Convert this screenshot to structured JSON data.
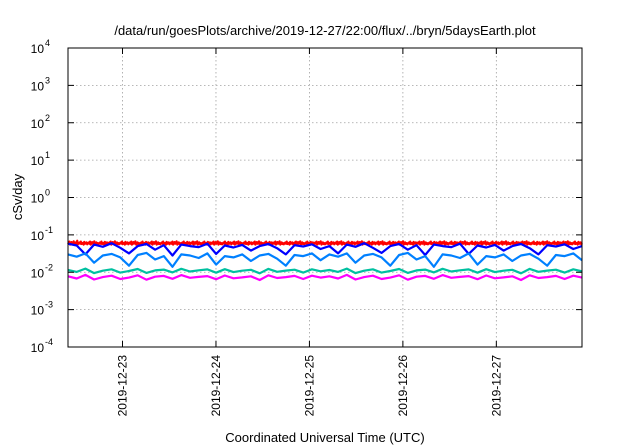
{
  "chart_data": {
    "type": "line",
    "title": "/data/run/goesPlots/archive/2019-12-27/22:00/flux/../bryn/5daysEarth.plot",
    "xlabel": "Coordinated Universal Time (UTC)",
    "ylabel": "cSv/day",
    "yscale": "log",
    "ylim": [
      0.0001,
      10000
    ],
    "ytick_base": "10",
    "ytick_exponents": [
      "-4",
      "-3",
      "-2",
      "-1",
      "0",
      "1",
      "2",
      "3",
      "4"
    ],
    "xlim": [
      "2019-12-22T10:00",
      "2019-12-27T22:00"
    ],
    "xticks": [
      "2019-12-23",
      "2019-12-24",
      "2019-12-25",
      "2019-12-26",
      "2019-12-27"
    ],
    "grid": true,
    "series": [
      {
        "color": "#ff0000",
        "y": [
          0.062,
          0.058,
          0.066,
          0.055,
          0.06,
          0.064,
          0.058,
          0.061,
          0.067,
          0.055,
          0.059,
          0.063,
          0.057,
          0.07,
          0.056,
          0.06,
          0.062,
          0.058,
          0.066,
          0.057,
          0.06,
          0.061,
          0.055,
          0.065,
          0.058,
          0.059,
          0.063,
          0.056,
          0.06,
          0.062,
          0.058,
          0.066,
          0.055,
          0.06,
          0.064,
          0.058,
          0.061,
          0.067,
          0.055,
          0.059,
          0.063,
          0.057,
          0.06,
          0.056,
          0.06,
          0.062,
          0.058,
          0.066,
          0.057,
          0.06,
          0.061,
          0.055,
          0.065,
          0.058,
          0.059,
          0.063,
          0.056,
          0.06,
          0.062,
          0.058,
          0.066,
          0.055,
          0.06,
          0.064,
          0.058,
          0.061,
          0.067,
          0.055,
          0.059,
          0.063,
          0.057,
          0.06,
          0.056,
          0.06,
          0.062,
          0.058,
          0.066,
          0.057,
          0.06,
          0.061,
          0.055,
          0.065,
          0.058,
          0.059,
          0.063,
          0.056,
          0.06,
          0.062,
          0.058,
          0.066,
          0.055,
          0.06,
          0.064,
          0.058,
          0.061,
          0.067,
          0.055,
          0.059,
          0.063,
          0.057,
          0.06,
          0.056,
          0.06,
          0.062,
          0.058,
          0.066,
          0.057,
          0.06,
          0.061,
          0.055,
          0.065,
          0.058,
          0.059,
          0.063,
          0.056,
          0.06,
          0.062,
          0.058,
          0.066,
          0.055,
          0.06,
          0.064,
          0.058,
          0.061,
          0.067,
          0.055,
          0.059,
          0.063,
          0.057,
          0.06,
          0.056,
          0.06,
          0.062,
          0.058,
          0.066,
          0.057,
          0.06,
          0.061,
          0.055,
          0.065,
          0.058,
          0.059,
          0.063,
          0.056,
          0.06,
          0.062,
          0.058,
          0.066,
          0.055,
          0.06,
          0.064,
          0.058,
          0.061,
          0.067,
          0.055,
          0.059,
          0.063,
          0.057,
          0.06,
          0.056,
          0.06,
          0.062,
          0.058,
          0.066,
          0.057,
          0.06,
          0.061,
          0.055,
          0.065,
          0.058,
          0.059,
          0.063,
          0.056,
          0.06,
          0.062,
          0.058,
          0.066,
          0.055,
          0.06,
          0.064,
          0.058,
          0.061,
          0.067,
          0.055,
          0.059,
          0.063,
          0.057,
          0.06,
          0.056,
          0.06,
          0.062,
          0.058,
          0.066,
          0.057,
          0.06,
          0.061,
          0.055,
          0.065,
          0.058,
          0.059,
          0.063,
          0.056,
          0.06,
          0.062,
          0.058,
          0.066,
          0.055,
          0.06,
          0.064,
          0.058,
          0.061,
          0.067,
          0.055,
          0.059,
          0.063,
          0.057,
          0.06,
          0.056,
          0.06,
          0.062,
          0.058,
          0.066,
          0.057,
          0.06,
          0.061,
          0.055,
          0.065,
          0.058,
          0.059,
          0.063,
          0.056,
          0.06,
          0.062,
          0.058,
          0.066,
          0.055,
          0.06,
          0.064,
          0.058,
          0.061,
          0.067,
          0.055,
          0.059,
          0.063,
          0.057,
          0.06,
          0.056,
          0.06,
          0.062,
          0.058,
          0.066,
          0.057,
          0.06,
          0.061,
          0.055,
          0.065,
          0.058,
          0.059,
          0.063,
          0.056,
          0.06,
          0.062,
          0.058,
          0.066,
          0.055,
          0.06,
          0.064,
          0.058,
          0.061,
          0.067,
          0.055,
          0.059,
          0.063,
          0.057,
          0.06,
          0.056,
          0.06,
          0.062,
          0.058,
          0.066,
          0.057,
          0.06,
          0.061,
          0.055,
          0.065,
          0.058,
          0.059,
          0.063,
          0.056,
          0.06,
          0.062,
          0.058,
          0.066,
          0.055,
          0.06,
          0.064,
          0.058,
          0.061,
          0.067,
          0.055,
          0.059,
          0.063,
          0.057,
          0.06,
          0.056,
          0.06,
          0.062,
          0.058,
          0.066,
          0.057,
          0.06,
          0.061,
          0.055,
          0.065,
          0.058,
          0.059,
          0.063,
          0.056,
          0.06,
          0.062,
          0.058,
          0.066,
          0.055,
          0.06,
          0.064,
          0.058,
          0.061,
          0.067,
          0.055,
          0.059,
          0.063,
          0.057,
          0.06,
          0.056,
          0.06,
          0.062,
          0.058,
          0.066,
          0.057,
          0.06,
          0.061,
          0.055,
          0.065,
          0.058,
          0.059,
          0.063,
          0.056,
          0.06,
          0.062,
          0.058,
          0.066,
          0.055,
          0.06,
          0.064,
          0.058,
          0.061,
          0.067,
          0.055,
          0.059,
          0.063,
          0.057,
          0.06,
          0.056,
          0.06,
          0.062,
          0.058,
          0.066,
          0.057,
          0.06,
          0.061,
          0.055,
          0.065,
          0.058,
          0.059,
          0.063,
          0.056,
          0.06,
          0.062,
          0.058,
          0.066,
          0.055,
          0.06,
          0.064,
          0.058,
          0.061,
          0.067,
          0.055,
          0.059,
          0.063,
          0.057,
          0.06,
          0.056,
          0.06,
          0.062,
          0.058,
          0.066,
          0.057,
          0.06,
          0.061,
          0.055,
          0.065,
          0.058,
          0.059,
          0.063,
          0.056,
          0.06,
          0.062,
          0.058,
          0.066,
          0.055,
          0.06,
          0.064,
          0.058,
          0.061,
          0.067,
          0.055,
          0.059,
          0.063,
          0.057,
          0.06,
          0.056,
          0.06,
          0.062,
          0.058,
          0.066,
          0.057,
          0.06,
          0.061,
          0.055,
          0.065,
          0.058,
          0.059,
          0.063,
          0.056,
          0.06,
          0.062,
          0.058,
          0.066,
          0.055,
          0.06,
          0.064,
          0.058,
          0.061,
          0.067,
          0.055,
          0.059,
          0.063,
          0.057,
          0.06,
          0.056,
          0.06,
          0.062,
          0.058,
          0.066,
          0.057,
          0.06,
          0.061,
          0.055,
          0.065,
          0.058,
          0.059,
          0.063,
          0.056,
          0.06,
          0.062,
          0.058,
          0.066,
          0.055,
          0.06,
          0.064,
          0.058,
          0.061,
          0.067,
          0.055,
          0.059,
          0.063,
          0.057,
          0.06,
          0.056,
          0.06,
          0.062,
          0.058,
          0.066,
          0.057,
          0.06,
          0.061,
          0.055,
          0.065,
          0.058,
          0.059,
          0.063,
          0.056,
          0.06,
          0.062,
          0.058,
          0.066,
          0.055,
          0.06,
          0.064,
          0.058,
          0.061,
          0.067,
          0.055,
          0.059,
          0.063,
          0.057,
          0.06,
          0.056,
          0.06,
          0.062,
          0.058,
          0.066,
          0.057,
          0.06,
          0.061,
          0.055,
          0.065,
          0.058,
          0.059,
          0.063,
          0.056,
          0.06,
          0.062,
          0.058,
          0.066,
          0.055,
          0.06,
          0.064,
          0.058,
          0.061,
          0.067,
          0.055,
          0.059,
          0.063,
          0.057,
          0.06,
          0.056,
          0.06,
          0.062,
          0.058,
          0.066,
          0.057,
          0.06,
          0.061,
          0.055,
          0.065,
          0.058,
          0.059,
          0.063,
          0.056,
          0.06,
          0.062,
          0.058,
          0.066,
          0.055,
          0.06,
          0.064,
          0.058,
          0.061,
          0.067,
          0.055,
          0.059,
          0.063,
          0.057,
          0.06,
          0.056,
          0.06,
          0.062,
          0.058,
          0.066,
          0.057,
          0.06,
          0.061,
          0.055,
          0.065,
          0.058,
          0.059,
          0.063,
          0.056,
          0.06,
          0.062,
          0.058,
          0.066,
          0.055,
          0.06,
          0.064,
          0.058,
          0.061,
          0.067,
          0.055,
          0.059,
          0.063,
          0.057,
          0.06,
          0.056,
          0.06,
          0.062,
          0.058,
          0.066,
          0.057,
          0.06,
          0.061,
          0.055,
          0.065,
          0.058,
          0.059,
          0.063,
          0.056,
          0.06,
          0.062,
          0.058,
          0.066,
          0.055,
          0.06,
          0.064,
          0.058,
          0.061,
          0.067,
          0.055,
          0.059,
          0.063,
          0.057,
          0.06,
          0.056,
          0.06,
          0.062,
          0.058,
          0.066,
          0.057,
          0.06,
          0.061,
          0.055,
          0.065,
          0.058,
          0.059,
          0.063,
          0.056,
          0.06,
          0.062,
          0.058,
          0.066,
          0.055,
          0.06,
          0.064,
          0.058,
          0.061,
          0.067,
          0.055,
          0.059,
          0.063,
          0.057,
          0.06,
          0.056,
          0.06,
          0.062,
          0.058,
          0.066,
          0.057,
          0.06,
          0.061,
          0.055,
          0.065,
          0.058,
          0.059,
          0.063,
          0.056,
          0.06,
          0.062,
          0.058,
          0.066,
          0.055,
          0.06,
          0.064,
          0.058,
          0.061,
          0.067,
          0.055,
          0.059,
          0.063,
          0.057,
          0.06,
          0.056,
          0.06,
          0.062,
          0.058,
          0.066,
          0.057,
          0.06,
          0.061,
          0.055,
          0.065,
          0.058,
          0.059,
          0.063,
          0.056,
          0.06,
          0.062,
          0.058,
          0.066,
          0.055,
          0.06,
          0.064,
          0.058,
          0.061,
          0.067,
          0.055,
          0.059,
          0.063,
          0.057,
          0.06,
          0.056,
          0.06,
          0.062,
          0.058,
          0.066,
          0.057,
          0.06,
          0.061,
          0.055,
          0.065,
          0.058,
          0.059,
          0.063,
          0.056,
          0.06
        ]
      },
      {
        "color": "#0000ff",
        "y": [
          0.058,
          0.052,
          0.03,
          0.055,
          0.048,
          0.06,
          0.045,
          0.032,
          0.05,
          0.057,
          0.04,
          0.053,
          0.028,
          0.055,
          0.05,
          0.047,
          0.058,
          0.031,
          0.052,
          0.046,
          0.054,
          0.038,
          0.05,
          0.057,
          0.044,
          0.03,
          0.053,
          0.049,
          0.056,
          0.042,
          0.05,
          0.032,
          0.055,
          0.048,
          0.06,
          0.045,
          0.033,
          0.05,
          0.057,
          0.04,
          0.053,
          0.029,
          0.055,
          0.05,
          0.047,
          0.058,
          0.031,
          0.052,
          0.046,
          0.054,
          0.038,
          0.05,
          0.057,
          0.044,
          0.03,
          0.053,
          0.049,
          0.056,
          0.042,
          0.05
        ]
      },
      {
        "color": "#0080ff",
        "y": [
          0.03,
          0.026,
          0.032,
          0.018,
          0.028,
          0.031,
          0.025,
          0.015,
          0.029,
          0.033,
          0.022,
          0.027,
          0.014,
          0.03,
          0.028,
          0.024,
          0.032,
          0.016,
          0.027,
          0.025,
          0.03,
          0.02,
          0.028,
          0.031,
          0.023,
          0.015,
          0.029,
          0.027,
          0.032,
          0.021,
          0.03,
          0.026,
          0.032,
          0.018,
          0.028,
          0.031,
          0.025,
          0.015,
          0.029,
          0.033,
          0.022,
          0.027,
          0.014,
          0.03,
          0.028,
          0.024,
          0.032,
          0.016,
          0.027,
          0.025,
          0.03,
          0.02,
          0.028,
          0.031,
          0.023,
          0.015,
          0.029,
          0.027,
          0.032,
          0.021
        ]
      },
      {
        "color": "#00c0a0",
        "y": [
          0.0115,
          0.0102,
          0.0125,
          0.0095,
          0.011,
          0.012,
          0.0098,
          0.0108,
          0.0122,
          0.0096,
          0.0112,
          0.0118,
          0.0099,
          0.0124,
          0.0105,
          0.0113,
          0.0119,
          0.0097,
          0.0121,
          0.0101,
          0.011,
          0.0116,
          0.0094,
          0.0123,
          0.0103,
          0.0111,
          0.0117,
          0.0098,
          0.012,
          0.0106,
          0.0115,
          0.0102,
          0.0125,
          0.0095,
          0.011,
          0.012,
          0.0098,
          0.0108,
          0.0122,
          0.0096,
          0.0112,
          0.0118,
          0.0099,
          0.0124,
          0.0105,
          0.0113,
          0.0119,
          0.0097,
          0.0121,
          0.0101,
          0.011,
          0.0116,
          0.0094,
          0.0123,
          0.0103,
          0.0111,
          0.0117,
          0.0098,
          0.012,
          0.0106
        ]
      },
      {
        "color": "#ff00ff",
        "y": [
          0.0078,
          0.0068,
          0.0085,
          0.0064,
          0.0074,
          0.0081,
          0.0066,
          0.0072,
          0.0083,
          0.0063,
          0.0076,
          0.008,
          0.0067,
          0.0084,
          0.0071,
          0.0075,
          0.0079,
          0.0065,
          0.0082,
          0.0069,
          0.0073,
          0.0078,
          0.0062,
          0.0083,
          0.007,
          0.0074,
          0.008,
          0.0066,
          0.0081,
          0.0072,
          0.0078,
          0.0068,
          0.0085,
          0.0064,
          0.0074,
          0.0081,
          0.0066,
          0.0072,
          0.0083,
          0.0063,
          0.0076,
          0.008,
          0.0067,
          0.0084,
          0.0071,
          0.0075,
          0.0079,
          0.0065,
          0.0082,
          0.0069,
          0.0073,
          0.0078,
          0.0062,
          0.0083,
          0.007,
          0.0074,
          0.008,
          0.0066,
          0.0081,
          0.0072
        ]
      }
    ]
  }
}
